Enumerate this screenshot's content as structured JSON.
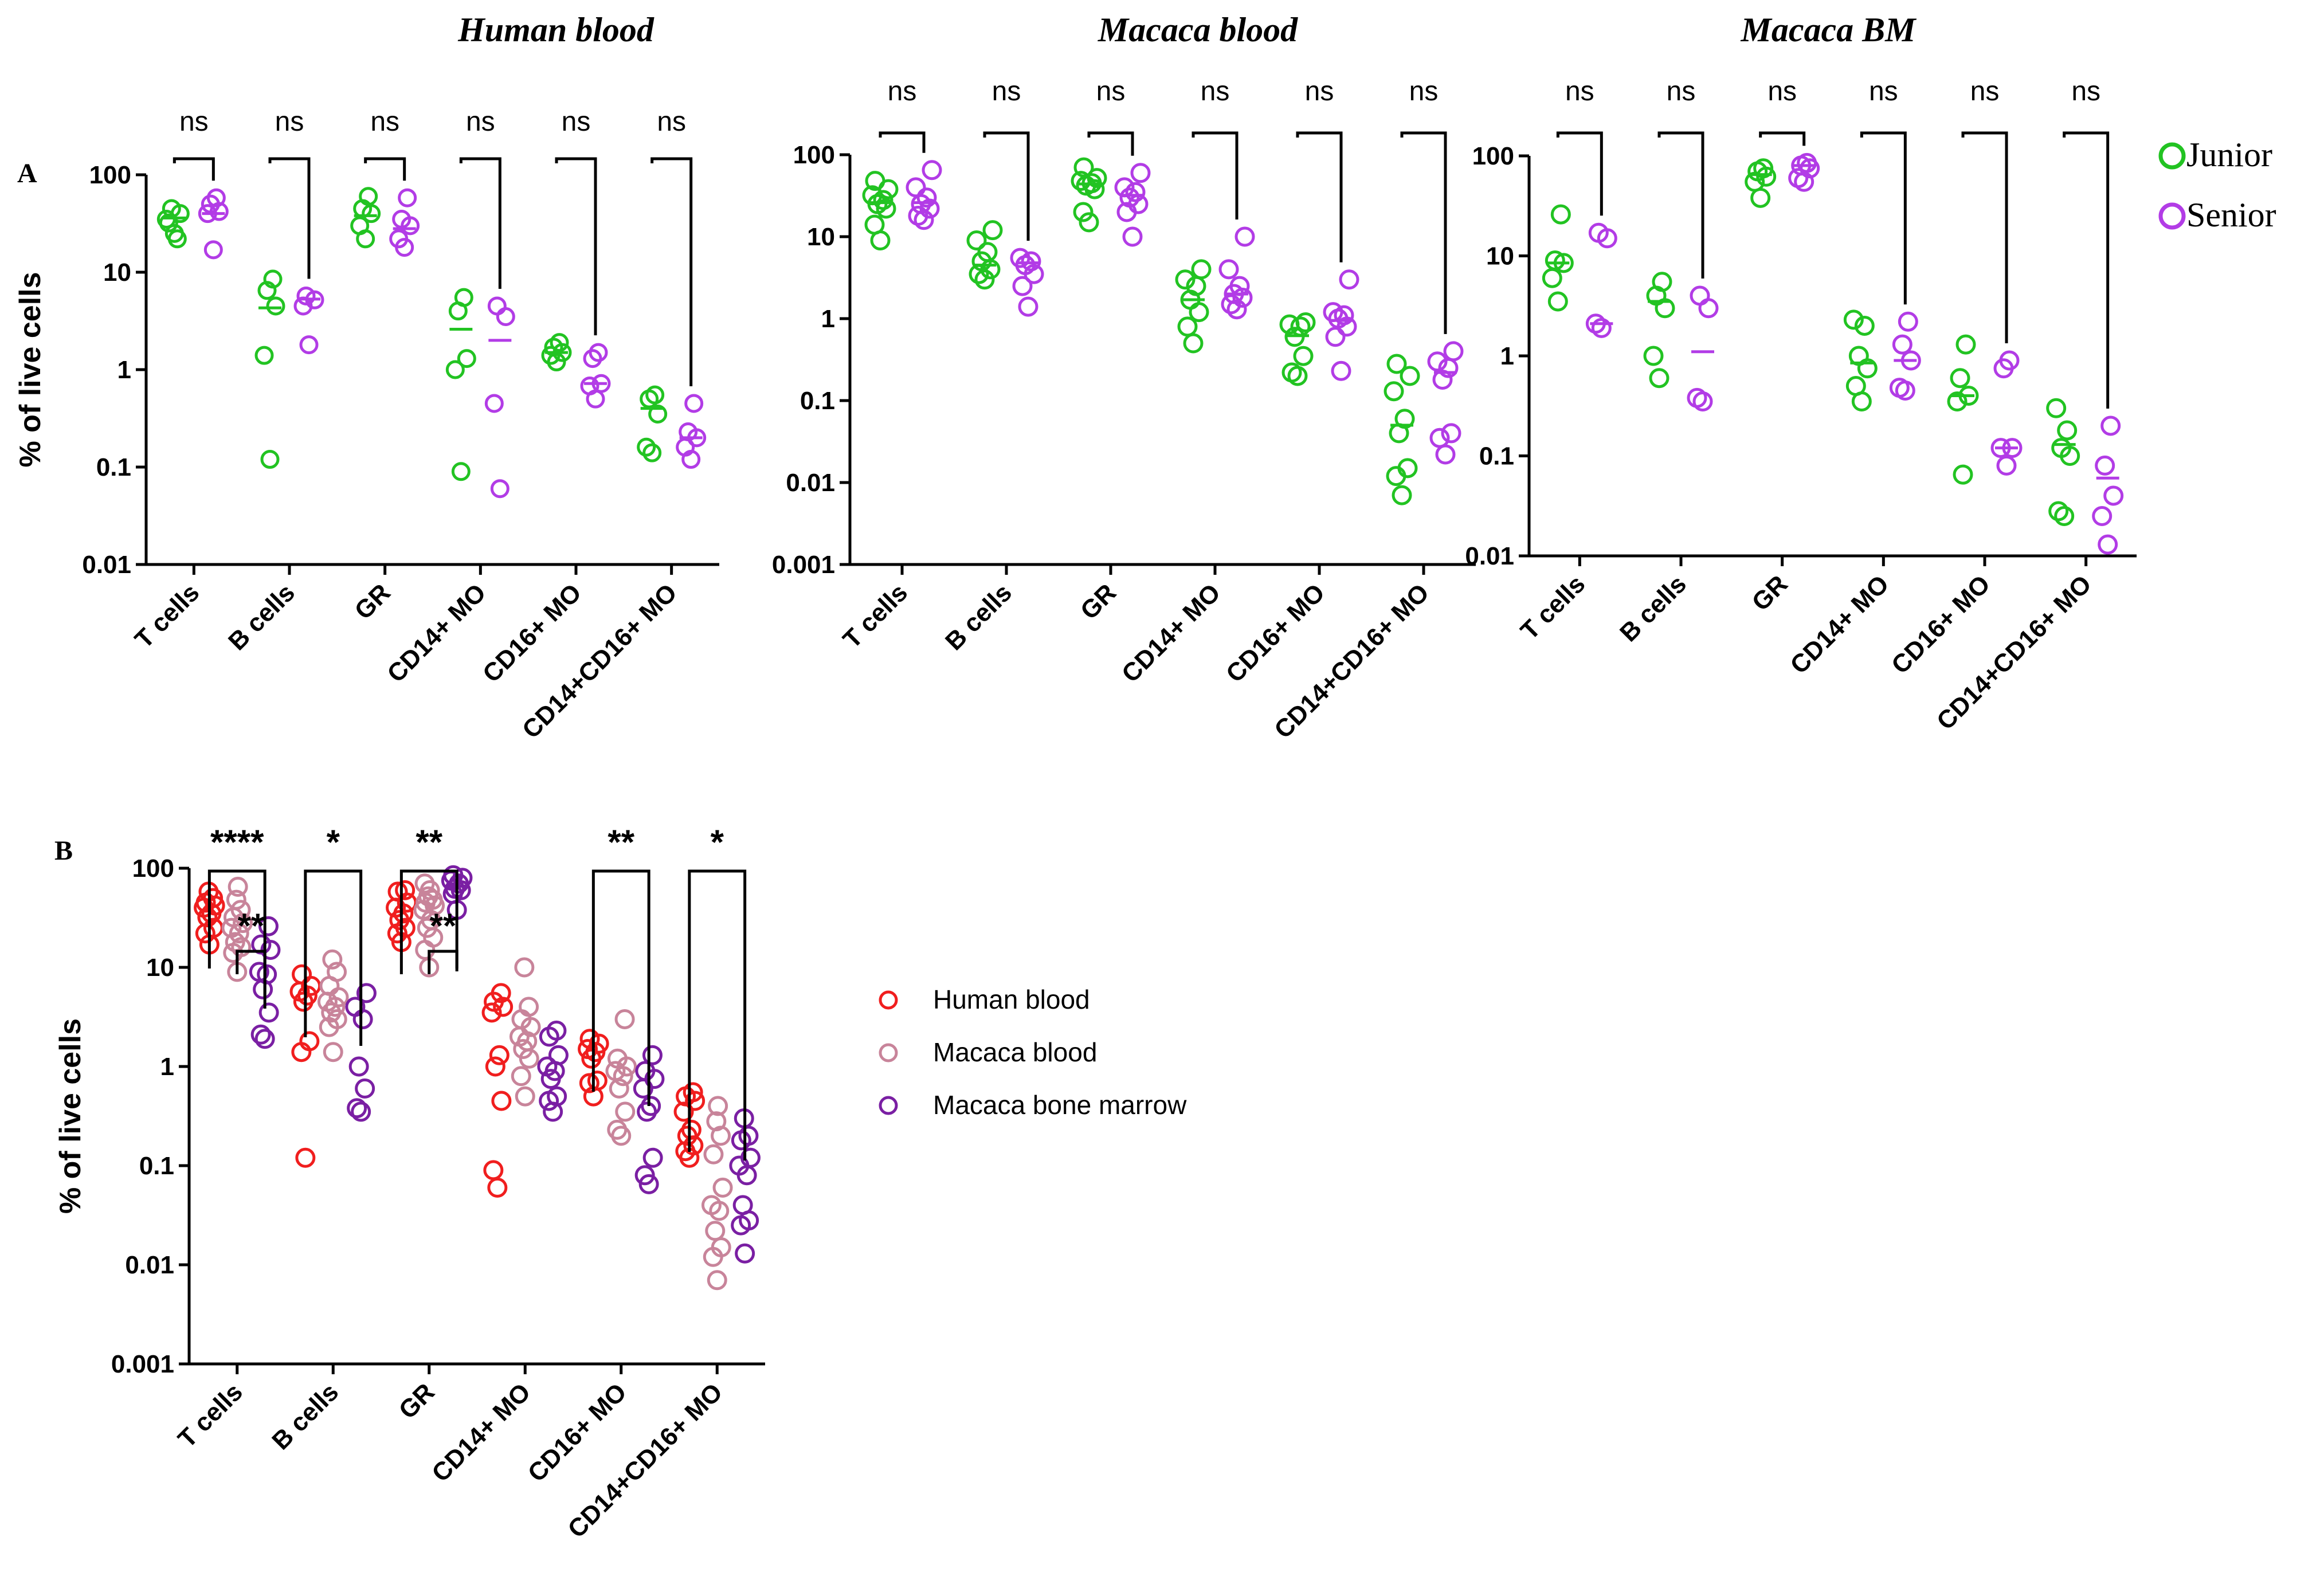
{
  "panel_labels": {
    "a": "A",
    "b": "B"
  },
  "colors": {
    "junior": "#22c322",
    "senior": "#b23ce6",
    "human_blood": "#f01e1e",
    "macaca_blood": "#c8849a",
    "macaca_bm": "#7a1fa3",
    "axis": "#000000"
  },
  "legend_a": [
    {
      "label": "Junior",
      "color_key": "junior"
    },
    {
      "label": "Senior",
      "color_key": "senior"
    }
  ],
  "legend_b": [
    {
      "label": "Human blood",
      "color_key": "human_blood"
    },
    {
      "label": "Macaca blood",
      "color_key": "macaca_blood"
    },
    {
      "label": "Macaca bone marrow",
      "color_key": "macaca_bm"
    }
  ],
  "chart_data": [
    {
      "id": "A1",
      "type": "scatter",
      "title": "Human blood",
      "ylabel": "% of live cells",
      "yscale": "log",
      "ylim": [
        0.01,
        100
      ],
      "yticks": [
        "0.01",
        "0.1",
        "1",
        "10",
        "100"
      ],
      "categories": [
        "T cells",
        "B cells",
        "GR",
        "CD14+ MO",
        "CD16+ MO",
        "CD14+CD16+ MO"
      ],
      "significance": [
        "ns",
        "ns",
        "ns",
        "ns",
        "ns",
        "ns"
      ],
      "series": [
        {
          "name": "Junior",
          "color_key": "junior",
          "values": [
            [
              25,
              32,
              40,
              45,
              22,
              35
            ],
            [
              0.12,
              1.4,
              4.5,
              6.5,
              8.5
            ],
            [
              22,
              30,
              40,
              45,
              60
            ],
            [
              0.09,
              1.0,
              1.3,
              4.0,
              5.5
            ],
            [
              1.2,
              1.4,
              1.5,
              1.7,
              1.9
            ],
            [
              0.14,
              0.16,
              0.35,
              0.5,
              0.55
            ]
          ]
        },
        {
          "name": "Senior",
          "color_key": "senior",
          "values": [
            [
              17,
              40,
              42,
              50,
              58
            ],
            [
              1.8,
              4.5,
              5.2,
              5.7
            ],
            [
              18,
              22,
              30,
              35,
              58
            ],
            [
              0.06,
              0.45,
              3.5,
              4.5
            ],
            [
              0.5,
              0.68,
              0.72,
              1.3,
              1.5
            ],
            [
              0.12,
              0.16,
              0.2,
              0.23,
              0.45
            ]
          ]
        }
      ],
      "medians": [
        [
          36,
          40
        ],
        [
          4.3,
          5.3
        ],
        [
          38,
          28
        ],
        [
          2.6,
          2.0
        ],
        [
          1.5,
          0.72
        ],
        [
          0.4,
          0.2
        ]
      ]
    },
    {
      "id": "A2",
      "type": "scatter",
      "title": "Macaca blood",
      "ylabel": "",
      "yscale": "log",
      "ylim": [
        0.001,
        100
      ],
      "yticks": [
        "0.001",
        "0.01",
        "0.1",
        "1",
        "10",
        "100"
      ],
      "categories": [
        "T cells",
        "B cells",
        "GR",
        "CD14+ MO",
        "CD16+ MO",
        "CD14+CD16+ MO"
      ],
      "significance": [
        "ns",
        "ns",
        "ns",
        "ns",
        "ns",
        "ns"
      ],
      "series": [
        {
          "name": "Junior",
          "color_key": "junior",
          "values": [
            [
              9,
              14,
              22,
              25,
              28,
              32,
              38,
              48
            ],
            [
              3.0,
              3.5,
              4.0,
              5.0,
              6.5,
              9.0,
              12
            ],
            [
              15,
              20,
              38,
              42,
              45,
              48,
              52,
              70
            ],
            [
              0.5,
              0.8,
              1.2,
              1.7,
              2.5,
              3.0,
              4.0
            ],
            [
              0.2,
              0.22,
              0.35,
              0.6,
              0.8,
              0.85,
              0.9
            ],
            [
              0.007,
              0.012,
              0.015,
              0.04,
              0.06,
              0.13,
              0.2,
              0.28
            ]
          ]
        },
        {
          "name": "Senior",
          "color_key": "senior",
          "values": [
            [
              16,
              18,
              22,
              25,
              30,
              40,
              65
            ],
            [
              1.4,
              2.5,
              3.5,
              4.5,
              5.0,
              5.5
            ],
            [
              10,
              20,
              25,
              30,
              35,
              40,
              60
            ],
            [
              1.3,
              1.5,
              1.8,
              2.0,
              2.5,
              4.0,
              10
            ],
            [
              0.23,
              0.6,
              0.8,
              1.0,
              1.1,
              1.2,
              3.0
            ],
            [
              0.022,
              0.035,
              0.04,
              0.18,
              0.25,
              0.3,
              0.4
            ]
          ]
        }
      ],
      "medians": [
        [
          26,
          26
        ],
        [
          4.5,
          4.8
        ],
        [
          44,
          32
        ],
        [
          1.7,
          2.0
        ],
        [
          0.62,
          0.95
        ],
        [
          0.05,
          0.22
        ]
      ]
    },
    {
      "id": "A3",
      "type": "scatter",
      "title": "Macaca BM",
      "ylabel": "",
      "yscale": "log",
      "ylim": [
        0.01,
        100
      ],
      "yticks": [
        "0.01",
        "0.1",
        "1",
        "10",
        "100"
      ],
      "categories": [
        "T cells",
        "B cells",
        "GR",
        "CD14+ MO",
        "CD16+ MO",
        "CD14+CD16+ MO"
      ],
      "significance": [
        "ns",
        "ns",
        "ns",
        "ns",
        "ns",
        "ns"
      ],
      "series": [
        {
          "name": "Junior",
          "color_key": "junior",
          "values": [
            [
              3.5,
              6,
              8.5,
              9,
              26
            ],
            [
              0.6,
              1.0,
              3.0,
              4.0,
              5.5
            ],
            [
              38,
              55,
              62,
              70,
              75
            ],
            [
              0.35,
              0.5,
              0.75,
              1.0,
              2.0,
              2.3
            ],
            [
              0.065,
              0.35,
              0.4,
              0.6,
              1.3
            ],
            [
              0.025,
              0.028,
              0.1,
              0.12,
              0.18,
              0.3
            ]
          ]
        },
        {
          "name": "Senior",
          "color_key": "senior",
          "values": [
            [
              1.9,
              2.1,
              15,
              17
            ],
            [
              0.35,
              0.38,
              3.0,
              4.0
            ],
            [
              55,
              60,
              75,
              80,
              85
            ],
            [
              0.45,
              0.48,
              0.9,
              1.3,
              2.2
            ],
            [
              0.08,
              0.12,
              0.12,
              0.75,
              0.9
            ],
            [
              0.013,
              0.025,
              0.04,
              0.08,
              0.2
            ]
          ]
        }
      ],
      "medians": [
        [
          8.5,
          2.1
        ],
        [
          3.5,
          1.1
        ],
        [
          65,
          80
        ],
        [
          0.85,
          0.9
        ],
        [
          0.4,
          0.12
        ],
        [
          0.13,
          0.06
        ]
      ]
    },
    {
      "id": "B",
      "type": "scatter",
      "title": "",
      "ylabel": "% of live cells",
      "yscale": "log",
      "ylim": [
        0.001,
        100
      ],
      "yticks": [
        "0.001",
        "0.01",
        "0.1",
        "1",
        "10",
        "100"
      ],
      "categories": [
        "T cells",
        "B cells",
        "GR",
        "CD14+ MO",
        "CD16+ MO",
        "CD14+CD16+ MO"
      ],
      "series": [
        {
          "name": "Human blood",
          "color_key": "human_blood",
          "values": [
            [
              17,
              22,
              25,
              32,
              35,
              40,
              42,
              45,
              50,
              58
            ],
            [
              0.12,
              1.4,
              1.8,
              4.5,
              5.2,
              5.7,
              6.5,
              8.5
            ],
            [
              18,
              22,
              25,
              30,
              35,
              40,
              45,
              58,
              60
            ],
            [
              0.06,
              0.09,
              0.45,
              1.0,
              1.3,
              3.5,
              4.0,
              4.5,
              5.5
            ],
            [
              0.5,
              0.68,
              0.72,
              1.2,
              1.4,
              1.5,
              1.7,
              1.9
            ],
            [
              0.12,
              0.14,
              0.16,
              0.2,
              0.23,
              0.35,
              0.45,
              0.5,
              0.55
            ]
          ]
        },
        {
          "name": "Macaca blood",
          "color_key": "macaca_blood",
          "values": [
            [
              9,
              14,
              16,
              18,
              22,
              25,
              28,
              32,
              38,
              48,
              65
            ],
            [
              1.4,
              2.5,
              3.0,
              3.5,
              4.0,
              4.5,
              5.0,
              6.5,
              9.0,
              12
            ],
            [
              10,
              15,
              20,
              25,
              30,
              38,
              42,
              45,
              48,
              52,
              60,
              70
            ],
            [
              0.5,
              0.8,
              1.2,
              1.5,
              1.8,
              2.0,
              2.5,
              3.0,
              4.0,
              10
            ],
            [
              0.2,
              0.23,
              0.35,
              0.6,
              0.8,
              0.9,
              1.0,
              1.2,
              3.0
            ],
            [
              0.007,
              0.012,
              0.015,
              0.022,
              0.035,
              0.04,
              0.06,
              0.13,
              0.2,
              0.28,
              0.4
            ]
          ]
        },
        {
          "name": "Macaca bone marrow",
          "color_key": "macaca_bm",
          "values": [
            [
              1.9,
              2.1,
              3.5,
              6,
              8.5,
              9,
              15,
              17,
              26
            ],
            [
              0.35,
              0.38,
              0.6,
              1.0,
              3.0,
              4.0,
              5.5
            ],
            [
              38,
              55,
              60,
              62,
              70,
              75,
              80,
              85
            ],
            [
              0.35,
              0.45,
              0.5,
              0.75,
              0.9,
              1.0,
              1.3,
              2.0,
              2.3
            ],
            [
              0.065,
              0.08,
              0.12,
              0.35,
              0.4,
              0.6,
              0.75,
              0.9,
              1.3
            ],
            [
              0.013,
              0.025,
              0.028,
              0.04,
              0.08,
              0.1,
              0.12,
              0.18,
              0.2,
              0.3
            ]
          ]
        }
      ],
      "significance": [
        {
          "category": "T cells",
          "from": "Human blood",
          "to": "Macaca bone marrow",
          "label": "****"
        },
        {
          "category": "T cells",
          "from": "Macaca blood",
          "to": "Macaca bone marrow",
          "label": "**"
        },
        {
          "category": "B cells",
          "from": "Human blood",
          "to": "Macaca bone marrow",
          "label": "*"
        },
        {
          "category": "GR",
          "from": "Human blood",
          "to": "Macaca bone marrow",
          "label": "**"
        },
        {
          "category": "GR",
          "from": "Macaca blood",
          "to": "Macaca bone marrow",
          "label": "**"
        },
        {
          "category": "CD16+ MO",
          "from": "Human blood",
          "to": "Macaca bone marrow",
          "label": "**"
        },
        {
          "category": "CD14+CD16+ MO",
          "from": "Human blood",
          "to": "Macaca bone marrow",
          "label": "*"
        }
      ]
    }
  ]
}
